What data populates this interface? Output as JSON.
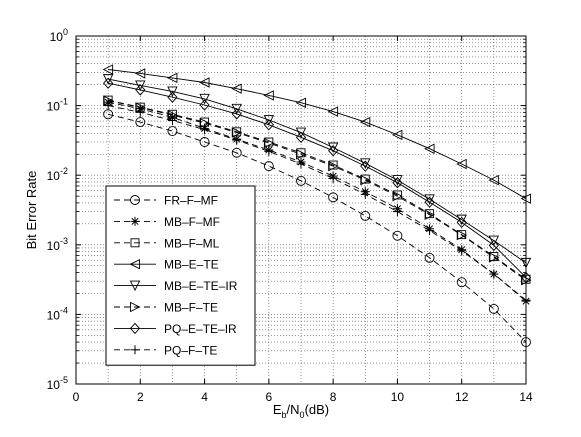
{
  "chart_data": {
    "type": "line",
    "xlabel": "E_b/N_0(dB)",
    "xlabel_parts": {
      "main1": "E",
      "sub1": "b",
      "mid": "/N",
      "sub2": "0",
      "tail": "(dB)"
    },
    "ylabel": "Bit Error Rate",
    "xlim": [
      0,
      14
    ],
    "ylim": [
      1e-05,
      1
    ],
    "y_scale": "log",
    "grid": true,
    "legend_position": "lower-left",
    "x_ticks": [
      {
        "value": 0,
        "label": "0"
      },
      {
        "value": 2,
        "label": "2"
      },
      {
        "value": 4,
        "label": "4"
      },
      {
        "value": 6,
        "label": "6"
      },
      {
        "value": 8,
        "label": "8"
      },
      {
        "value": 10,
        "label": "10"
      },
      {
        "value": 12,
        "label": "12"
      },
      {
        "value": 14,
        "label": "14"
      }
    ],
    "y_ticks": [
      {
        "exp": 0,
        "base": "10",
        "sup": "0"
      },
      {
        "exp": -1,
        "base": "10",
        "sup": "-1"
      },
      {
        "exp": -2,
        "base": "10",
        "sup": "-2"
      },
      {
        "exp": -3,
        "base": "10",
        "sup": "-3"
      },
      {
        "exp": -4,
        "base": "10",
        "sup": "-4"
      },
      {
        "exp": -5,
        "base": "10",
        "sup": "-5"
      }
    ],
    "x": [
      1,
      2,
      3,
      4,
      5,
      6,
      7,
      8,
      9,
      10,
      11,
      12,
      13,
      14
    ],
    "series": [
      {
        "name": "FR–F–MF",
        "marker": "circle",
        "dash": "dashed",
        "values": [
          0.075,
          0.058,
          0.043,
          0.03,
          0.021,
          0.0135,
          0.0083,
          0.0048,
          0.0026,
          0.00135,
          0.00065,
          0.00029,
          0.00012,
          4e-05
        ]
      },
      {
        "name": "MB–F–MF",
        "marker": "star",
        "dash": "dashed",
        "values": [
          0.112,
          0.09,
          0.068,
          0.047,
          0.033,
          0.023,
          0.0155,
          0.0097,
          0.0058,
          0.0033,
          0.0017,
          0.00085,
          0.00038,
          0.000155
        ]
      },
      {
        "name": "MB–F–ML",
        "marker": "square",
        "dash": "dashed",
        "values": [
          0.12,
          0.095,
          0.075,
          0.058,
          0.042,
          0.03,
          0.021,
          0.014,
          0.0088,
          0.0052,
          0.0028,
          0.0014,
          0.00068,
          0.00032
        ]
      },
      {
        "name": "MB–E–TE",
        "marker": "triangle-left",
        "dash": "solid",
        "values": [
          0.33,
          0.29,
          0.25,
          0.215,
          0.175,
          0.14,
          0.11,
          0.082,
          0.058,
          0.038,
          0.024,
          0.0145,
          0.0085,
          0.0046
        ]
      },
      {
        "name": "MB–E–TE–IR",
        "marker": "triangle-down",
        "dash": "solid",
        "values": [
          0.24,
          0.195,
          0.16,
          0.125,
          0.09,
          0.062,
          0.041,
          0.025,
          0.0148,
          0.0085,
          0.0045,
          0.0023,
          0.00115,
          0.00055
        ]
      },
      {
        "name": "MB–F–TE",
        "marker": "triangle-right",
        "dash": "dashed",
        "values": [
          0.118,
          0.094,
          0.073,
          0.056,
          0.041,
          0.029,
          0.02,
          0.0135,
          0.0085,
          0.005,
          0.0027,
          0.00138,
          0.00066,
          0.00031
        ]
      },
      {
        "name": "PQ–E–TE–IR",
        "marker": "diamond",
        "dash": "solid",
        "values": [
          0.21,
          0.168,
          0.132,
          0.102,
          0.076,
          0.053,
          0.035,
          0.0225,
          0.0135,
          0.0078,
          0.0041,
          0.0021,
          0.00098,
          0.00034
        ]
      },
      {
        "name": "PQ–F–TE",
        "marker": "plus",
        "dash": "dashed",
        "values": [
          0.1,
          0.08,
          0.061,
          0.045,
          0.032,
          0.022,
          0.0145,
          0.009,
          0.0053,
          0.003,
          0.0016,
          0.00082,
          0.00038,
          0.00016
        ]
      }
    ]
  }
}
